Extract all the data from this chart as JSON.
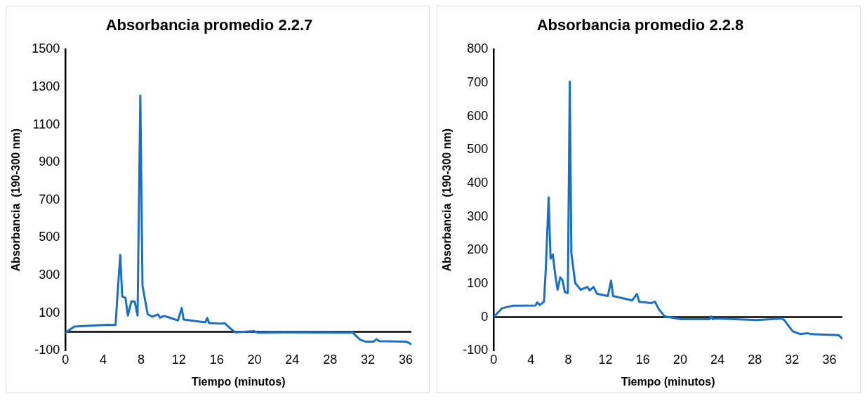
{
  "chart_data": [
    {
      "type": "line",
      "title": "Absorbancia promedio 2.2.7",
      "xlabel": "Tiempo (minutos)",
      "ylabel": "Absorbancia  (190-300 nm)",
      "xlim": [
        0,
        36.6
      ],
      "xticks": [
        0,
        4,
        8,
        12,
        16,
        20,
        24,
        28,
        32,
        36
      ],
      "ylim": [
        -100,
        1500
      ],
      "yticks": [
        -100,
        100,
        300,
        500,
        700,
        900,
        1100,
        1300,
        1500
      ],
      "legend": false,
      "marker": "none",
      "line_style": "solid",
      "series": [
        {
          "color": "#1a6fc4",
          "x": [
            0,
            0.95,
            4.4,
            5.3,
            5.5,
            5.8,
            6.0,
            6.35,
            6.6,
            6.98,
            7.33,
            7.63,
            7.92,
            8.15,
            8.7,
            9.2,
            9.8,
            10.0,
            10.4,
            10.9,
            11.9,
            12.3,
            12.5,
            14.8,
            15.0,
            15.2,
            16.5,
            16.85,
            17.4,
            17.95,
            19.97,
            20.3,
            23.1,
            30.06,
            30.35,
            31.2,
            31.8,
            32.6,
            32.9,
            33.2,
            36.1,
            36.6
          ],
          "values": [
            -5,
            28,
            37,
            36,
            194,
            408,
            188,
            180,
            86,
            162,
            160,
            86,
            1255,
            244,
            93,
            80,
            92,
            75,
            84,
            77,
            60,
            126,
            65,
            50,
            73,
            46,
            43,
            46,
            20,
            -3,
            3,
            -5,
            -3,
            -5,
            -3,
            -43,
            -53,
            -53,
            -40,
            -50,
            -53,
            -66
          ]
        }
      ]
    },
    {
      "type": "line",
      "title": "Absorbancia promedio 2.2.8",
      "xlabel": "Tiempo (minutos)",
      "ylabel": "Absorbancia  (190-300 nm)",
      "xlim": [
        0,
        37.4
      ],
      "xticks": [
        0,
        4,
        8,
        12,
        16,
        20,
        24,
        28,
        32,
        36
      ],
      "ylim": [
        -100,
        800
      ],
      "yticks": [
        -100,
        0,
        100,
        200,
        300,
        400,
        500,
        600,
        700,
        800
      ],
      "legend": false,
      "marker": "none",
      "line_style": "solid",
      "series": [
        {
          "color": "#1a6fc4",
          "x": [
            0,
            0.87,
            2.04,
            4.5,
            4.66,
            4.95,
            5.39,
            5.59,
            5.89,
            6.1,
            6.34,
            6.6,
            6.85,
            7.14,
            7.37,
            7.63,
            7.95,
            8.16,
            8.33,
            8.74,
            9.33,
            10.05,
            10.3,
            10.72,
            11.07,
            12.24,
            12.59,
            12.8,
            14.86,
            15.36,
            15.6,
            16.9,
            17.3,
            17.75,
            18.35,
            20.1,
            23.16,
            23.3,
            23.5,
            23.9,
            28.26,
            30.9,
            31.2,
            32.05,
            32.9,
            33.65,
            34.0,
            37.0,
            37.4
          ],
          "values": [
            0,
            26,
            34,
            35,
            44,
            36,
            46,
            143,
            358,
            175,
            187,
            127,
            82,
            119,
            111,
            75,
            72,
            704,
            191,
            102,
            82,
            90,
            80,
            90,
            70,
            63,
            109,
            63,
            50,
            69,
            46,
            42,
            46,
            22,
            2,
            -6,
            -6,
            2,
            -6,
            -4,
            -9,
            -4,
            -10,
            -42,
            -51,
            -48,
            -51,
            -54,
            -64
          ]
        }
      ]
    }
  ]
}
